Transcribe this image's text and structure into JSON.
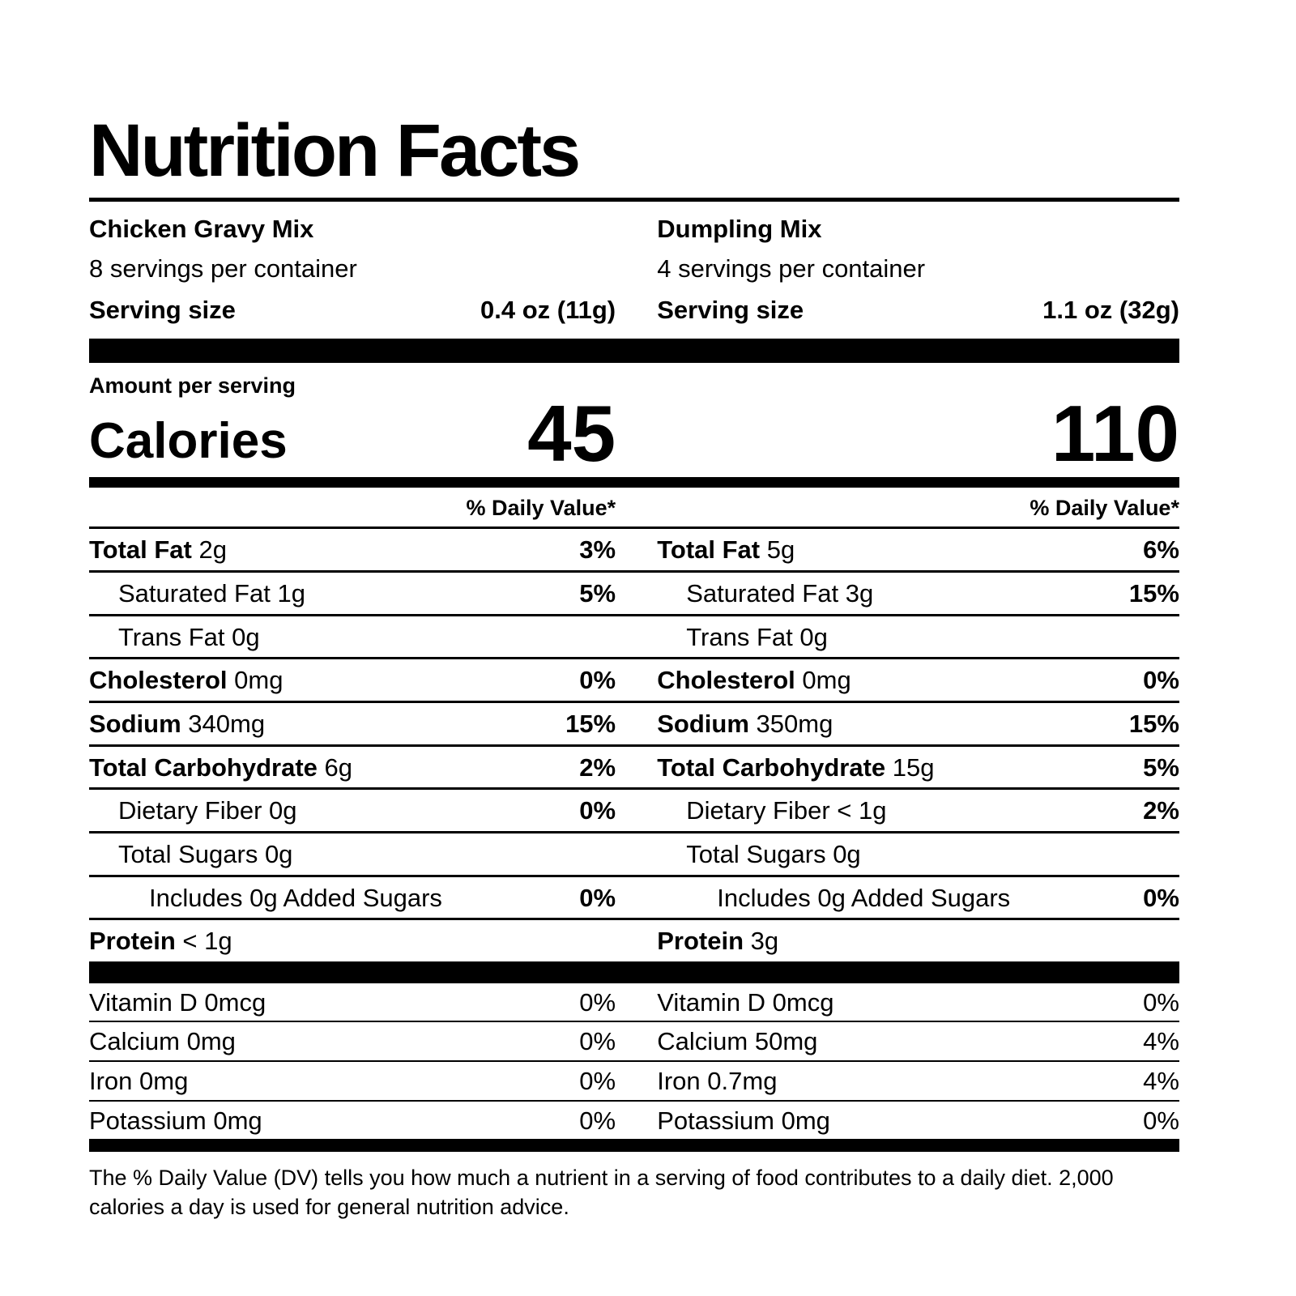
{
  "label": {
    "title": "Nutrition Facts",
    "amount_per_serving": "Amount per serving",
    "calories_label": "Calories",
    "daily_value_header": "% Daily Value*",
    "footnote": "The % Daily Value (DV) tells you how much a nutrient in a serving of food contributes to a daily diet. 2,000 calories a day is used for general nutrition advice.",
    "colors": {
      "ink": "#000000",
      "paper": "#ffffff"
    },
    "columns": [
      {
        "id": "chicken-gravy-mix",
        "product": "Chicken Gravy Mix",
        "servings_per_container": "8 servings per container",
        "serving_size_label": "Serving size",
        "serving_size_value": "0.4 oz (11g)",
        "calories": "45",
        "nutrients": [
          {
            "name": "Total Fat",
            "value": "2g",
            "dv": "3%",
            "bold": true,
            "indent": 0
          },
          {
            "name": "Saturated Fat",
            "value": "1g",
            "dv": "5%",
            "bold": false,
            "indent": 1
          },
          {
            "name": "Trans Fat",
            "value": "0g",
            "dv": "",
            "bold": false,
            "indent": 1
          },
          {
            "name": "Cholesterol",
            "value": "0mg",
            "dv": "0%",
            "bold": true,
            "indent": 0
          },
          {
            "name": "Sodium",
            "value": "340mg",
            "dv": "15%",
            "bold": true,
            "indent": 0
          },
          {
            "name": "Total Carbohydrate",
            "value": "6g",
            "dv": "2%",
            "bold": true,
            "indent": 0
          },
          {
            "name": "Dietary Fiber",
            "value": "0g",
            "dv": "0%",
            "bold": false,
            "indent": 1
          },
          {
            "name": "Total Sugars",
            "value": "0g",
            "dv": "",
            "bold": false,
            "indent": 1
          },
          {
            "name": "Includes 0g Added Sugars",
            "value": "",
            "dv": "0%",
            "bold": false,
            "indent": 2
          },
          {
            "name": "Protein",
            "value": "< 1g",
            "dv": "",
            "bold": true,
            "indent": 0
          }
        ],
        "vitamins": [
          {
            "name": "Vitamin D",
            "value": "0mcg",
            "dv": "0%"
          },
          {
            "name": "Calcium",
            "value": "0mg",
            "dv": "0%"
          },
          {
            "name": "Iron",
            "value": "0mg",
            "dv": "0%"
          },
          {
            "name": "Potassium",
            "value": "0mg",
            "dv": "0%"
          }
        ]
      },
      {
        "id": "dumpling-mix",
        "product": "Dumpling Mix",
        "servings_per_container": "4 servings per container",
        "serving_size_label": "Serving size",
        "serving_size_value": "1.1 oz (32g)",
        "calories": "110",
        "nutrients": [
          {
            "name": "Total Fat",
            "value": "5g",
            "dv": "6%",
            "bold": true,
            "indent": 0
          },
          {
            "name": "Saturated Fat",
            "value": "3g",
            "dv": "15%",
            "bold": false,
            "indent": 1
          },
          {
            "name": "Trans Fat",
            "value": "0g",
            "dv": "",
            "bold": false,
            "indent": 1
          },
          {
            "name": "Cholesterol",
            "value": "0mg",
            "dv": "0%",
            "bold": true,
            "indent": 0
          },
          {
            "name": "Sodium",
            "value": "350mg",
            "dv": "15%",
            "bold": true,
            "indent": 0
          },
          {
            "name": "Total Carbohydrate",
            "value": "15g",
            "dv": "5%",
            "bold": true,
            "indent": 0
          },
          {
            "name": "Dietary Fiber",
            "value": "< 1g",
            "dv": "2%",
            "bold": false,
            "indent": 1
          },
          {
            "name": "Total Sugars",
            "value": "0g",
            "dv": "",
            "bold": false,
            "indent": 1
          },
          {
            "name": "Includes 0g Added Sugars",
            "value": "",
            "dv": "0%",
            "bold": false,
            "indent": 2
          },
          {
            "name": "Protein",
            "value": "3g",
            "dv": "",
            "bold": true,
            "indent": 0
          }
        ],
        "vitamins": [
          {
            "name": "Vitamin D",
            "value": "0mcg",
            "dv": "0%"
          },
          {
            "name": "Calcium",
            "value": "50mg",
            "dv": "4%"
          },
          {
            "name": "Iron",
            "value": "0.7mg",
            "dv": "4%"
          },
          {
            "name": "Potassium",
            "value": "0mg",
            "dv": "0%"
          }
        ]
      }
    ]
  }
}
